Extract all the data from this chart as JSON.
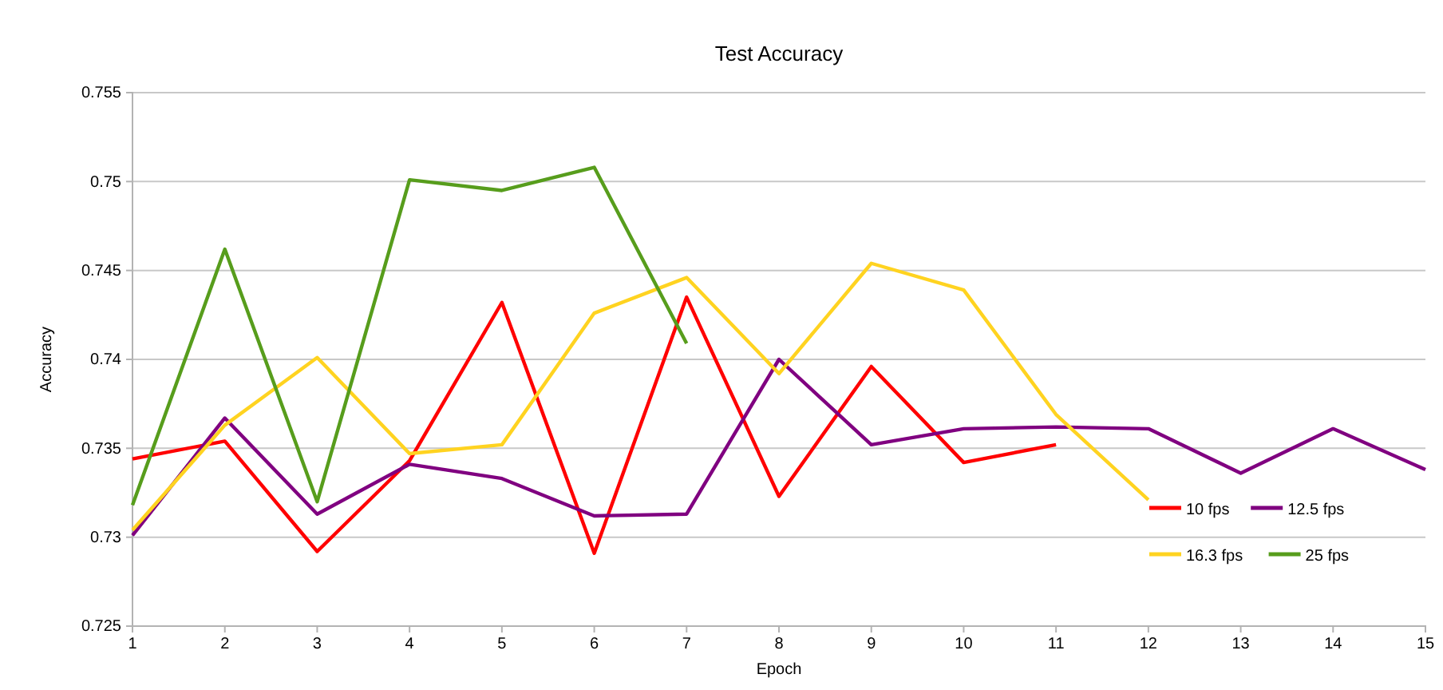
{
  "chart_data": {
    "type": "line",
    "title": "Test Accuracy",
    "xlabel": "Epoch",
    "ylabel": "Accuracy",
    "x": [
      1,
      2,
      3,
      4,
      5,
      6,
      7,
      8,
      9,
      10,
      11,
      12,
      13,
      14,
      15
    ],
    "xlim": [
      1,
      15
    ],
    "xticks": [
      1,
      2,
      3,
      4,
      5,
      6,
      7,
      8,
      9,
      10,
      11,
      12,
      13,
      14,
      15
    ],
    "ylim": [
      0.725,
      0.755
    ],
    "yticks": [
      0.725,
      0.73,
      0.735,
      0.74,
      0.745,
      0.75,
      0.755
    ],
    "grid": "y",
    "legend": "right",
    "marker": "none",
    "line_style": "solid",
    "series": [
      {
        "name": "10 fps",
        "color": "#ff0000",
        "values": [
          0.7344,
          0.7354,
          0.7292,
          0.7343,
          0.7432,
          0.7291,
          0.7435,
          0.7323,
          0.7396,
          0.7342,
          0.7352,
          null,
          null,
          null,
          null
        ]
      },
      {
        "name": "12.5 fps",
        "color": "#800080",
        "values": [
          0.7301,
          0.7367,
          0.7313,
          0.7341,
          0.7333,
          0.7312,
          0.7313,
          0.74,
          0.7352,
          0.7361,
          0.7362,
          0.7361,
          0.7336,
          0.7361,
          0.7338
        ]
      },
      {
        "name": "16.3 fps",
        "color": "#ffd320",
        "values": [
          0.7304,
          0.7363,
          0.7401,
          0.7347,
          0.7352,
          0.7426,
          0.7446,
          0.7392,
          0.7454,
          0.7439,
          0.7369,
          0.7321,
          null,
          null,
          null
        ]
      },
      {
        "name": "25 fps",
        "color": "#579d1c",
        "values": [
          0.7318,
          0.7462,
          0.732,
          0.7501,
          0.7495,
          0.7508,
          0.7409,
          null,
          null,
          null,
          null,
          null,
          null,
          null,
          null
        ]
      }
    ]
  }
}
